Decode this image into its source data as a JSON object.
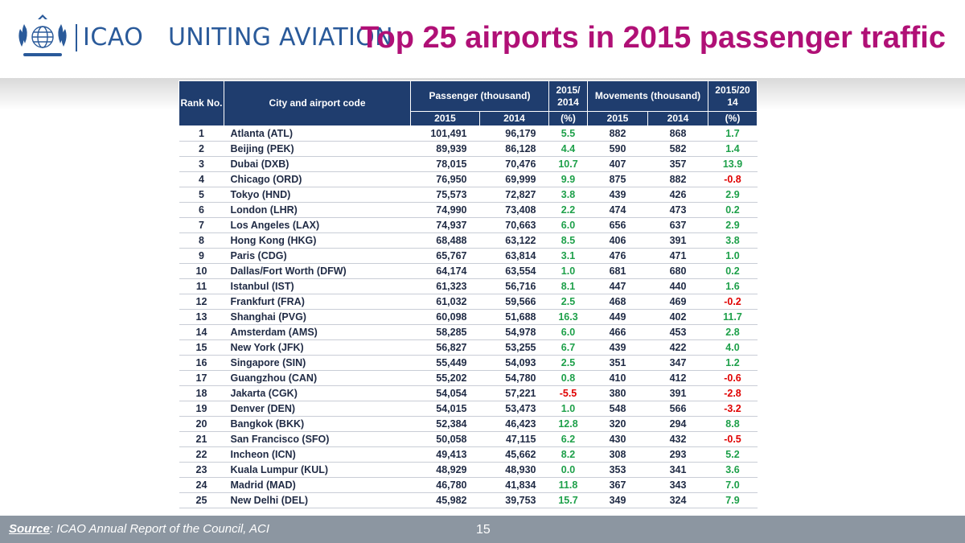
{
  "header": {
    "org": "ICAO",
    "tagline": "UNITING AVIATION",
    "title": "Top 25 airports in 2015 passenger traffic",
    "logo_icon": "un-emblem-icon"
  },
  "table": {
    "headers": {
      "rank": "Rank No.",
      "city": "City and airport code",
      "passenger": "Passenger (thousand)",
      "pax_change": "2015/ 2014",
      "movements": "Movements (thousand)",
      "mov_change": "2015/20 14",
      "sub_2015": "2015",
      "sub_2014": "2014",
      "sub_pct": "(%)"
    },
    "rows": [
      {
        "rank": "1",
        "city": "Atlanta (ATL)",
        "pax2015": "101,491",
        "pax2014": "96,179",
        "paxpct": "5.5",
        "mov2015": "882",
        "mov2014": "868",
        "movpct": "1.7"
      },
      {
        "rank": "2",
        "city": "Beijing (PEK)",
        "pax2015": "89,939",
        "pax2014": "86,128",
        "paxpct": "4.4",
        "mov2015": "590",
        "mov2014": "582",
        "movpct": "1.4"
      },
      {
        "rank": "3",
        "city": "Dubai (DXB)",
        "pax2015": "78,015",
        "pax2014": "70,476",
        "paxpct": "10.7",
        "mov2015": "407",
        "mov2014": "357",
        "movpct": "13.9"
      },
      {
        "rank": "4",
        "city": "Chicago (ORD)",
        "pax2015": "76,950",
        "pax2014": "69,999",
        "paxpct": "9.9",
        "mov2015": "875",
        "mov2014": "882",
        "movpct": "-0.8"
      },
      {
        "rank": "5",
        "city": "Tokyo (HND)",
        "pax2015": "75,573",
        "pax2014": "72,827",
        "paxpct": "3.8",
        "mov2015": "439",
        "mov2014": "426",
        "movpct": "2.9"
      },
      {
        "rank": "6",
        "city": "London (LHR)",
        "pax2015": "74,990",
        "pax2014": "73,408",
        "paxpct": "2.2",
        "mov2015": "474",
        "mov2014": "473",
        "movpct": "0.2"
      },
      {
        "rank": "7",
        "city": "Los Angeles (LAX)",
        "pax2015": "74,937",
        "pax2014": "70,663",
        "paxpct": "6.0",
        "mov2015": "656",
        "mov2014": "637",
        "movpct": "2.9"
      },
      {
        "rank": "8",
        "city": "Hong Kong (HKG)",
        "pax2015": "68,488",
        "pax2014": "63,122",
        "paxpct": "8.5",
        "mov2015": "406",
        "mov2014": "391",
        "movpct": "3.8"
      },
      {
        "rank": "9",
        "city": "Paris (CDG)",
        "pax2015": "65,767",
        "pax2014": "63,814",
        "paxpct": "3.1",
        "mov2015": "476",
        "mov2014": "471",
        "movpct": "1.0"
      },
      {
        "rank": "10",
        "city": "Dallas/Fort Worth (DFW)",
        "pax2015": "64,174",
        "pax2014": "63,554",
        "paxpct": "1.0",
        "mov2015": "681",
        "mov2014": "680",
        "movpct": "0.2"
      },
      {
        "rank": "11",
        "city": "Istanbul (IST)",
        "pax2015": "61,323",
        "pax2014": "56,716",
        "paxpct": "8.1",
        "mov2015": "447",
        "mov2014": "440",
        "movpct": "1.6"
      },
      {
        "rank": "12",
        "city": "Frankfurt (FRA)",
        "pax2015": "61,032",
        "pax2014": "59,566",
        "paxpct": "2.5",
        "mov2015": "468",
        "mov2014": "469",
        "movpct": "-0.2"
      },
      {
        "rank": "13",
        "city": "Shanghai (PVG)",
        "pax2015": "60,098",
        "pax2014": "51,688",
        "paxpct": "16.3",
        "mov2015": "449",
        "mov2014": "402",
        "movpct": "11.7"
      },
      {
        "rank": "14",
        "city": "Amsterdam (AMS)",
        "pax2015": "58,285",
        "pax2014": "54,978",
        "paxpct": "6.0",
        "mov2015": "466",
        "mov2014": "453",
        "movpct": "2.8"
      },
      {
        "rank": "15",
        "city": "New York (JFK)",
        "pax2015": "56,827",
        "pax2014": "53,255",
        "paxpct": "6.7",
        "mov2015": "439",
        "mov2014": "422",
        "movpct": "4.0"
      },
      {
        "rank": "16",
        "city": "Singapore (SIN)",
        "pax2015": "55,449",
        "pax2014": "54,093",
        "paxpct": "2.5",
        "mov2015": "351",
        "mov2014": "347",
        "movpct": "1.2"
      },
      {
        "rank": "17",
        "city": "Guangzhou (CAN)",
        "pax2015": "55,202",
        "pax2014": "54,780",
        "paxpct": "0.8",
        "mov2015": "410",
        "mov2014": "412",
        "movpct": "-0.6"
      },
      {
        "rank": "18",
        "city": "Jakarta (CGK)",
        "pax2015": "54,054",
        "pax2014": "57,221",
        "paxpct": "-5.5",
        "mov2015": "380",
        "mov2014": "391",
        "movpct": "-2.8"
      },
      {
        "rank": "19",
        "city": "Denver (DEN)",
        "pax2015": "54,015",
        "pax2014": "53,473",
        "paxpct": "1.0",
        "mov2015": "548",
        "mov2014": "566",
        "movpct": "-3.2"
      },
      {
        "rank": "20",
        "city": "Bangkok (BKK)",
        "pax2015": "52,384",
        "pax2014": "46,423",
        "paxpct": "12.8",
        "mov2015": "320",
        "mov2014": "294",
        "movpct": "8.8"
      },
      {
        "rank": "21",
        "city": "San Francisco (SFO)",
        "pax2015": "50,058",
        "pax2014": "47,115",
        "paxpct": "6.2",
        "mov2015": "430",
        "mov2014": "432",
        "movpct": "-0.5"
      },
      {
        "rank": "22",
        "city": "Incheon (ICN)",
        "pax2015": "49,413",
        "pax2014": "45,662",
        "paxpct": "8.2",
        "mov2015": "308",
        "mov2014": "293",
        "movpct": "5.2"
      },
      {
        "rank": "23",
        "city": "Kuala Lumpur (KUL)",
        "pax2015": "48,929",
        "pax2014": "48,930",
        "paxpct": "0.0",
        "mov2015": "353",
        "mov2014": "341",
        "movpct": "3.6"
      },
      {
        "rank": "24",
        "city": "Madrid (MAD)",
        "pax2015": "46,780",
        "pax2014": "41,834",
        "paxpct": "11.8",
        "mov2015": "367",
        "mov2014": "343",
        "movpct": "7.0"
      },
      {
        "rank": "25",
        "city": "New Delhi (DEL)",
        "pax2015": "45,982",
        "pax2014": "39,753",
        "paxpct": "15.7",
        "mov2015": "349",
        "mov2014": "324",
        "movpct": "7.9"
      }
    ]
  },
  "footer": {
    "source_label": "Source",
    "source_text": ": ICAO Annual Report of the Council, ACI",
    "page_number": "15"
  },
  "colors": {
    "title": "#b01076",
    "header_fill": "#1f3d6e",
    "positive": "#1ea04a",
    "negative": "#e00000",
    "footer_bg": "#8c96a1"
  }
}
